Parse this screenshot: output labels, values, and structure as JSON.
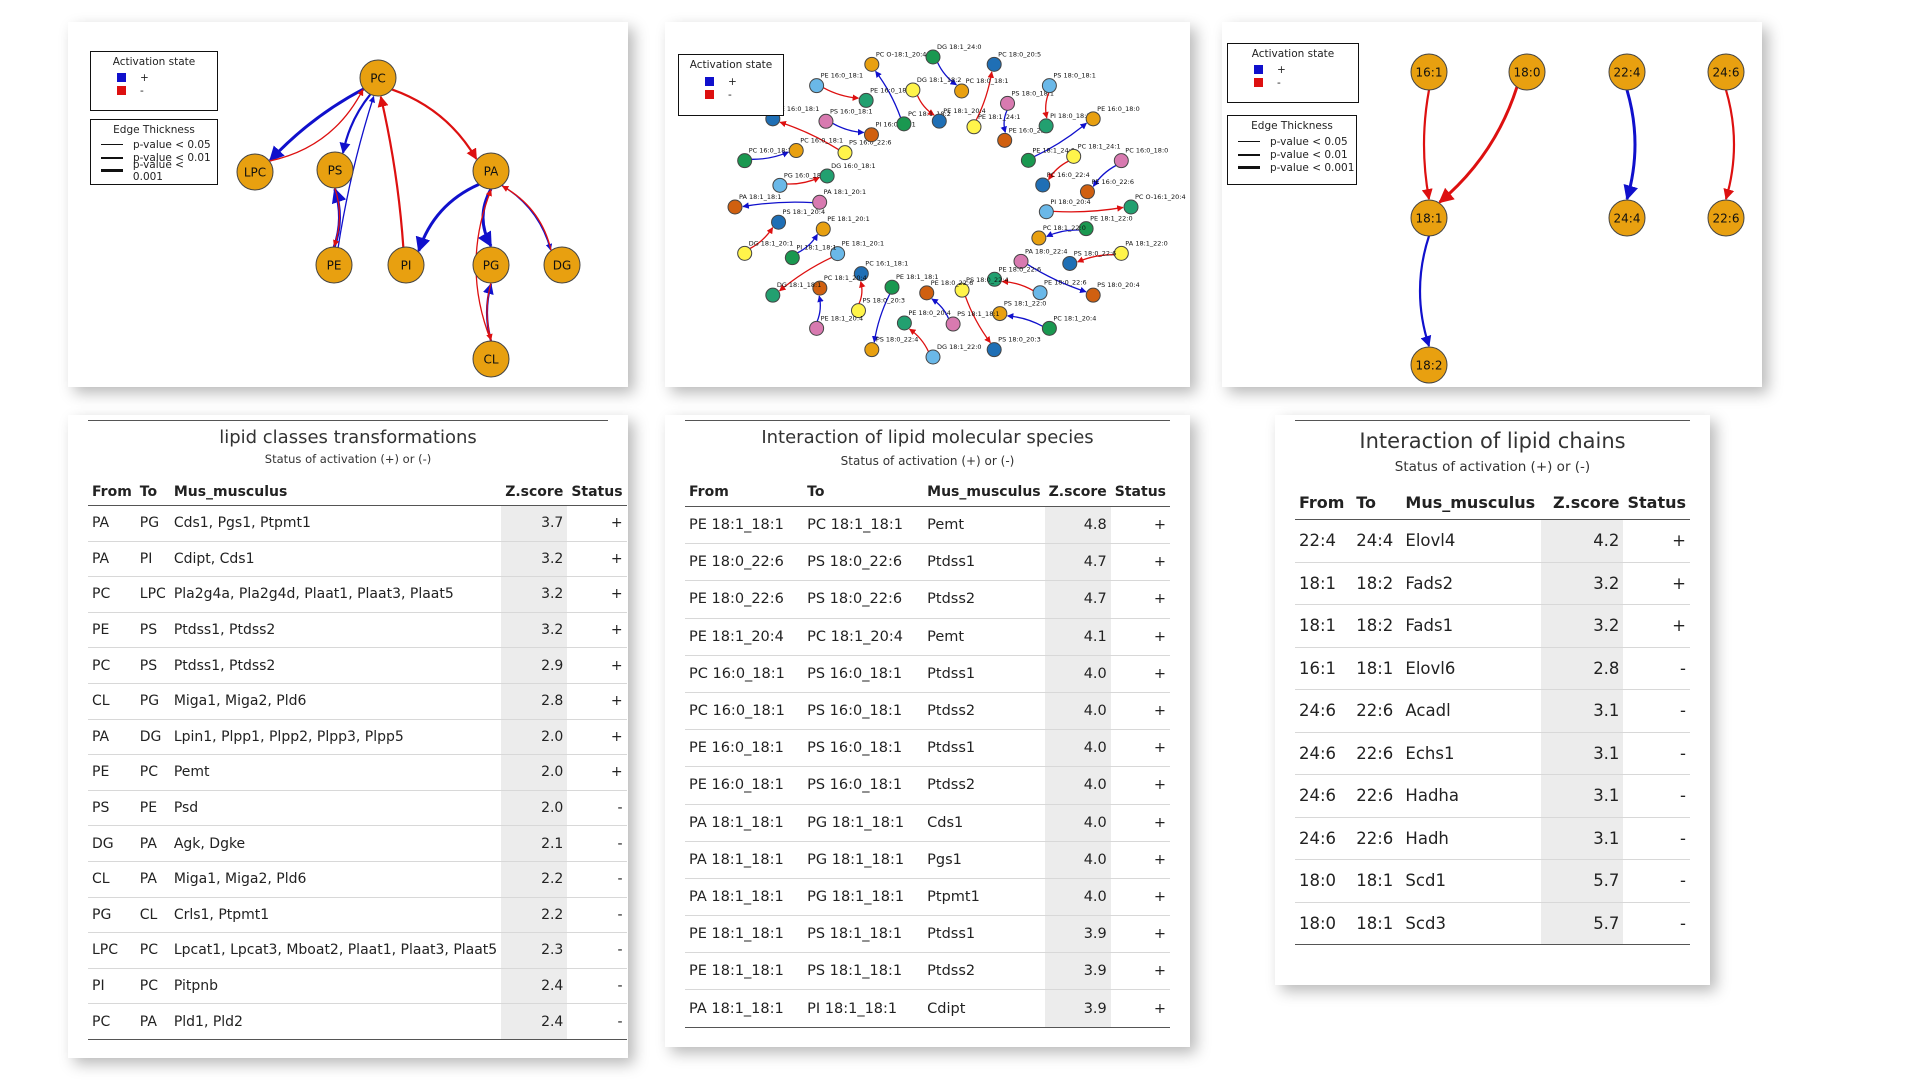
{
  "colors": {
    "node": "#e8a010",
    "node_stroke": "#555555",
    "positive": "#1010cc",
    "negative": "#dd1010"
  },
  "legend": {
    "activation_title": "Activation state",
    "activation_items": [
      {
        "label": "+",
        "color": "#1010cc"
      },
      {
        "label": "-",
        "color": "#dd1010"
      }
    ],
    "thickness_title": "Edge Thickness",
    "thickness_items": [
      {
        "label": "p-value < 0.05"
      },
      {
        "label": "p-value < 0.01"
      },
      {
        "label": "p-value < 0.001"
      }
    ]
  },
  "network_classes": {
    "nodes": [
      "PC",
      "LPC",
      "PS",
      "PA",
      "PE",
      "PI",
      "PG",
      "DG",
      "CL"
    ],
    "edges": [
      {
        "from": "PA",
        "to": "PG",
        "sign": "+",
        "strength": 3
      },
      {
        "from": "PA",
        "to": "PI",
        "sign": "+",
        "strength": 3
      },
      {
        "from": "PC",
        "to": "LPC",
        "sign": "+",
        "strength": 3
      },
      {
        "from": "PE",
        "to": "PS",
        "sign": "+",
        "strength": 3
      },
      {
        "from": "PC",
        "to": "PS",
        "sign": "+",
        "strength": 2
      },
      {
        "from": "CL",
        "to": "PG",
        "sign": "+",
        "strength": 2
      },
      {
        "from": "PA",
        "to": "DG",
        "sign": "+",
        "strength": 1
      },
      {
        "from": "PE",
        "to": "PC",
        "sign": "+",
        "strength": 1
      },
      {
        "from": "PS",
        "to": "PE",
        "sign": "-",
        "strength": 1
      },
      {
        "from": "DG",
        "to": "PA",
        "sign": "-",
        "strength": 1
      },
      {
        "from": "CL",
        "to": "PA",
        "sign": "-",
        "strength": 1
      },
      {
        "from": "PG",
        "to": "CL",
        "sign": "-",
        "strength": 1
      },
      {
        "from": "LPC",
        "to": "PC",
        "sign": "-",
        "strength": 1
      },
      {
        "from": "PI",
        "to": "PC",
        "sign": "-",
        "strength": 2
      },
      {
        "from": "PC",
        "to": "PA",
        "sign": "-",
        "strength": 2
      }
    ]
  },
  "network_species": {
    "labels": [
      "DG 18:1_24:0",
      "PC 18:0_18:1",
      "PE 18:1_24:1",
      "PC 18:0_20:5",
      "PS 18:0_18:1",
      "PE 16:0_22:4",
      "PS 18:0_18:1",
      "PI 18:0_18:2",
      "PE 18:1_24:0",
      "PE 16:0_18:0",
      "PC 18:1_24:1",
      "PC 16:0_22:4",
      "PC 16:0_18:0",
      "PE 16:0_22:6",
      "PI 18:0_20:4",
      "PC O-16:1_20:4",
      "PE 18:1_22:0",
      "PC 18:1_22:0",
      "PA 18:1_22:0",
      "PS 18:0_22:6",
      "PA 18:0_22:4",
      "PS 18:0_20:4",
      "PE 18:0_22:6",
      "PE 18:0_22:6",
      "PC 18:1_20:4",
      "PS 18:1_22:0",
      "PS 18:0_22:4",
      "PS 18:0_20:3",
      "PS 18:1_18:1",
      "PE 18:0_22:6",
      "DG 18:1_22:0",
      "PE 18:0_20:4",
      "PE 18:1_18:1",
      "PS 18:0_22:4",
      "PS 18:0_20:3",
      "PC 16:1_18:1",
      "PE 18:1_20:4",
      "PC 18:1_20:4",
      "PE 18:1_20:1",
      "DG 18:1_18:1",
      "PI 18:1_18:1",
      "PE 18:1_20:1",
      "DG 18:1_20:1",
      "PS 18:1_20:4",
      "PA 18:1_20:1",
      "PA 18:1_18:1",
      "PG 16:0_18:1",
      "DG 16:0_18:1",
      "PC 16:0_18:1",
      "PC 16:0_18:1",
      "PS 16:0_22:6",
      "PE 16:0_18:1",
      "PS 16:0_18:1",
      "PI 16:0_18:1",
      "PE 16:0_18:1",
      "PE 16:0_18:1",
      "PC 18:1_18:2",
      "PC O-18:1_20:4",
      "DG 18:1_18:2",
      "PE 18:1_20:4"
    ]
  },
  "network_chains": {
    "nodes": [
      "16:1",
      "18:0",
      "22:4",
      "24:6",
      "18:1",
      "24:4",
      "22:6",
      "18:2"
    ],
    "edges": [
      {
        "from": "16:1",
        "to": "18:1",
        "sign": "-",
        "strength": 2
      },
      {
        "from": "18:0",
        "to": "18:1",
        "sign": "-",
        "strength": 3
      },
      {
        "from": "22:4",
        "to": "24:4",
        "sign": "+",
        "strength": 3
      },
      {
        "from": "24:6",
        "to": "22:6",
        "sign": "-",
        "strength": 2
      },
      {
        "from": "18:1",
        "to": "18:2",
        "sign": "+",
        "strength": 2
      }
    ]
  },
  "table_classes": {
    "title": "lipid classes transformations",
    "subtitle": "Status of activation (+) or (-)",
    "columns": [
      "From",
      "To",
      "Mus_musculus",
      "Z.score",
      "Status"
    ],
    "rows": [
      [
        "PA",
        "PG",
        "Cds1, Pgs1, Ptpmt1",
        "3.7",
        "+"
      ],
      [
        "PA",
        "PI",
        "Cdipt, Cds1",
        "3.2",
        "+"
      ],
      [
        "PC",
        "LPC",
        "Pla2g4a, Pla2g4d, Plaat1, Plaat3, Plaat5",
        "3.2",
        "+"
      ],
      [
        "PE",
        "PS",
        "Ptdss1, Ptdss2",
        "3.2",
        "+"
      ],
      [
        "PC",
        "PS",
        "Ptdss1, Ptdss2",
        "2.9",
        "+"
      ],
      [
        "CL",
        "PG",
        "Miga1, Miga2, Pld6",
        "2.8",
        "+"
      ],
      [
        "PA",
        "DG",
        "Lpin1, Plpp1, Plpp2, Plpp3, Plpp5",
        "2.0",
        "+"
      ],
      [
        "PE",
        "PC",
        "Pemt",
        "2.0",
        "+"
      ],
      [
        "PS",
        "PE",
        "Psd",
        "2.0",
        "-"
      ],
      [
        "DG",
        "PA",
        "Agk, Dgke",
        "2.1",
        "-"
      ],
      [
        "CL",
        "PA",
        "Miga1, Miga2, Pld6",
        "2.2",
        "-"
      ],
      [
        "PG",
        "CL",
        "Crls1, Ptpmt1",
        "2.2",
        "-"
      ],
      [
        "LPC",
        "PC",
        "Lpcat1, Lpcat3, Mboat2, Plaat1, Plaat3, Plaat5",
        "2.3",
        "-"
      ],
      [
        "PI",
        "PC",
        "Pitpnb",
        "2.4",
        "-"
      ],
      [
        "PC",
        "PA",
        "Pld1, Pld2",
        "2.4",
        "-"
      ]
    ]
  },
  "table_species": {
    "title": "Interaction of lipid molecular species",
    "subtitle": "Status of activation (+) or (-)",
    "columns": [
      "From",
      "To",
      "Mus_musculus",
      "Z.score",
      "Status"
    ],
    "rows": [
      [
        "PE 18:1_18:1",
        "PC 18:1_18:1",
        "Pemt",
        "4.8",
        "+"
      ],
      [
        "PE 18:0_22:6",
        "PS 18:0_22:6",
        "Ptdss1",
        "4.7",
        "+"
      ],
      [
        "PE 18:0_22:6",
        "PS 18:0_22:6",
        "Ptdss2",
        "4.7",
        "+"
      ],
      [
        "PE 18:1_20:4",
        "PC 18:1_20:4",
        "Pemt",
        "4.1",
        "+"
      ],
      [
        "PC 16:0_18:1",
        "PS 16:0_18:1",
        "Ptdss1",
        "4.0",
        "+"
      ],
      [
        "PC 16:0_18:1",
        "PS 16:0_18:1",
        "Ptdss2",
        "4.0",
        "+"
      ],
      [
        "PE 16:0_18:1",
        "PS 16:0_18:1",
        "Ptdss1",
        "4.0",
        "+"
      ],
      [
        "PE 16:0_18:1",
        "PS 16:0_18:1",
        "Ptdss2",
        "4.0",
        "+"
      ],
      [
        "PA 18:1_18:1",
        "PG 18:1_18:1",
        "Cds1",
        "4.0",
        "+"
      ],
      [
        "PA 18:1_18:1",
        "PG 18:1_18:1",
        "Pgs1",
        "4.0",
        "+"
      ],
      [
        "PA 18:1_18:1",
        "PG 18:1_18:1",
        "Ptpmt1",
        "4.0",
        "+"
      ],
      [
        "PE 18:1_18:1",
        "PS 18:1_18:1",
        "Ptdss1",
        "3.9",
        "+"
      ],
      [
        "PE 18:1_18:1",
        "PS 18:1_18:1",
        "Ptdss2",
        "3.9",
        "+"
      ],
      [
        "PA 18:1_18:1",
        "PI 18:1_18:1",
        "Cdipt",
        "3.9",
        "+"
      ]
    ]
  },
  "table_chains": {
    "title": "Interaction of lipid chains",
    "subtitle": "Status of activation (+) or (-)",
    "columns": [
      "From",
      "To",
      "Mus_musculus",
      "Z.score",
      "Status"
    ],
    "rows": [
      [
        "22:4",
        "24:4",
        "Elovl4",
        "4.2",
        "+"
      ],
      [
        "18:1",
        "18:2",
        "Fads2",
        "3.2",
        "+"
      ],
      [
        "18:1",
        "18:2",
        "Fads1",
        "3.2",
        "+"
      ],
      [
        "16:1",
        "18:1",
        "Elovl6",
        "2.8",
        "-"
      ],
      [
        "24:6",
        "22:6",
        "Acadl",
        "3.1",
        "-"
      ],
      [
        "24:6",
        "22:6",
        "Echs1",
        "3.1",
        "-"
      ],
      [
        "24:6",
        "22:6",
        "Hadha",
        "3.1",
        "-"
      ],
      [
        "24:6",
        "22:6",
        "Hadh",
        "3.1",
        "-"
      ],
      [
        "18:0",
        "18:1",
        "Scd1",
        "5.7",
        "-"
      ],
      [
        "18:0",
        "18:1",
        "Scd3",
        "5.7",
        "-"
      ]
    ]
  }
}
